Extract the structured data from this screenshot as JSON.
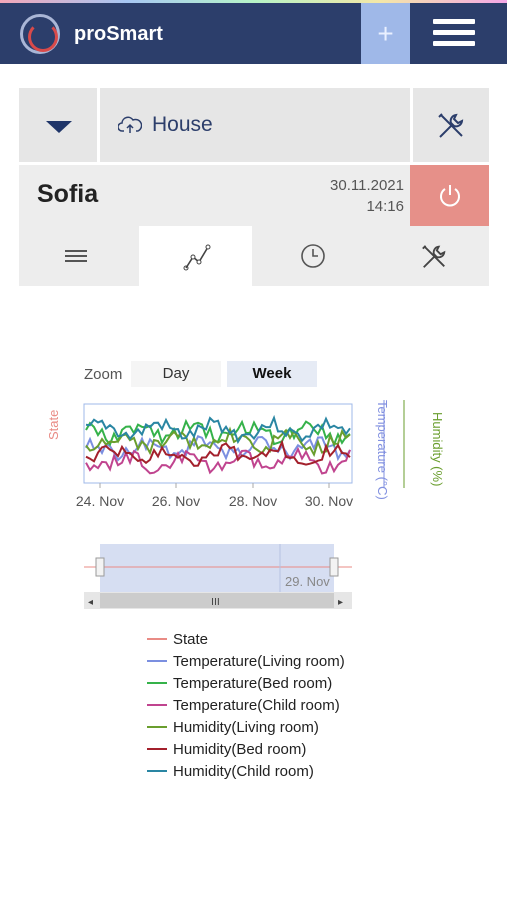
{
  "app": {
    "title": "proSmart",
    "add_label": "+"
  },
  "location": {
    "name": "House"
  },
  "device": {
    "name": "Sofia",
    "date": "30.11.2021",
    "time": "14:16"
  },
  "tabs": [
    {
      "name": "list",
      "active": false
    },
    {
      "name": "chart",
      "active": true
    },
    {
      "name": "clock",
      "active": false
    },
    {
      "name": "settings",
      "active": false
    }
  ],
  "zoom": {
    "label": "Zoom",
    "options": [
      "Day",
      "Week"
    ],
    "selected": "Week"
  },
  "chart_data": {
    "type": "line",
    "x_ticks": [
      "24. Nov",
      "26. Nov",
      "28. Nov",
      "30. Nov"
    ],
    "navigator_tick": "29. Nov",
    "axes": {
      "left": "State",
      "right1": "Temperature (°C)",
      "right2": "Humidity (%)"
    },
    "series": [
      {
        "name": "State",
        "color": "#e98b85"
      },
      {
        "name": "Temperature(Living room)",
        "color": "#7b8fe0"
      },
      {
        "name": "Temperature(Bed room)",
        "color": "#35b24a"
      },
      {
        "name": "Temperature(Child room)",
        "color": "#c0448f"
      },
      {
        "name": "Humidity(Living room)",
        "color": "#6a9e2e"
      },
      {
        "name": "Humidity(Bed room)",
        "color": "#a3202c"
      },
      {
        "name": "Humidity(Child room)",
        "color": "#2a86a3"
      }
    ]
  }
}
